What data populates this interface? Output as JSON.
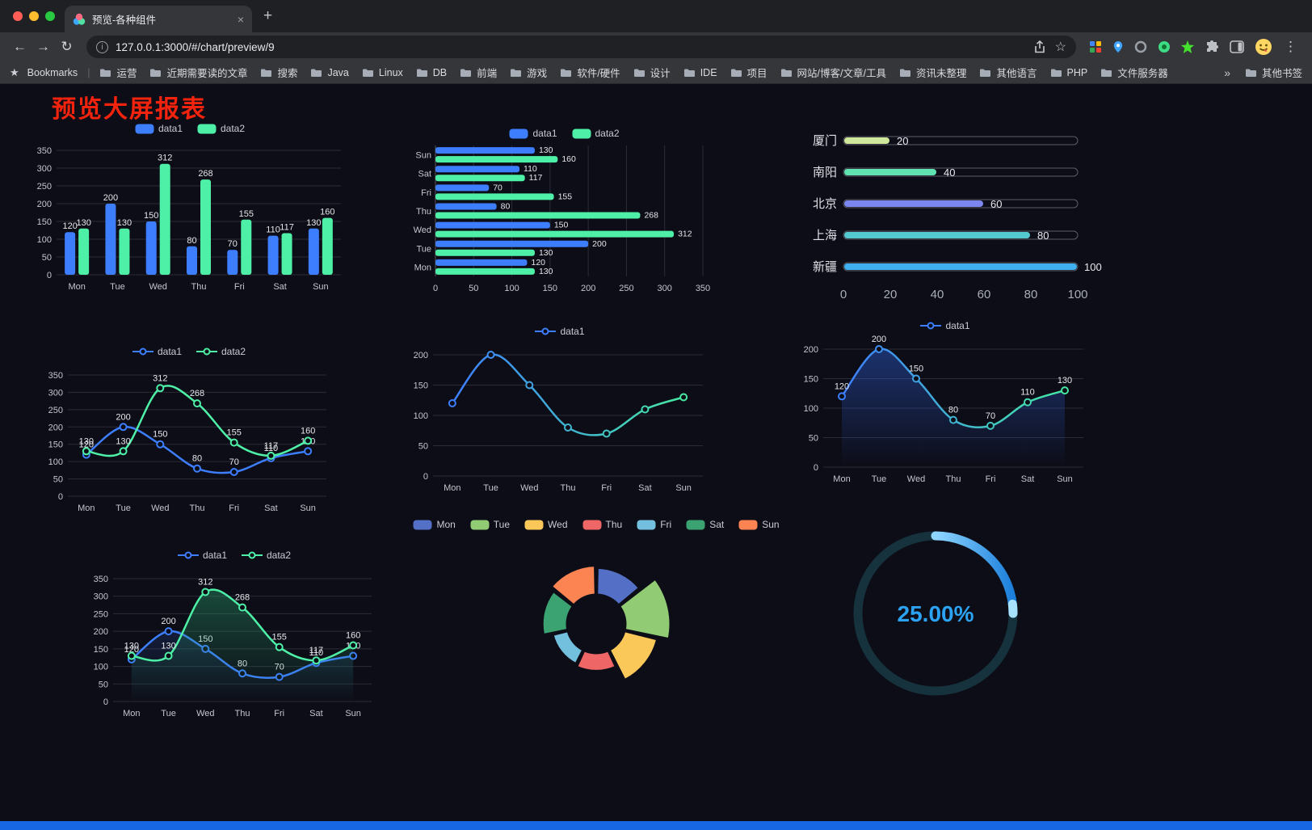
{
  "browser": {
    "tab_title": "预览-各种组件",
    "url": "127.0.0.1:3000/#/chart/preview/9",
    "icons": {
      "back": "←",
      "forward": "→",
      "reload": "↻",
      "info": "i",
      "star": "☆",
      "close": "×",
      "new_tab": "+",
      "menu": "⋮",
      "overflow": "»",
      "separator": "|",
      "bookmarks_star": "★"
    },
    "bookmarks": {
      "label": "Bookmarks",
      "items": [
        "运营",
        "近期需要读的文章",
        "搜索",
        "Java",
        "Linux",
        "DB",
        "前端",
        "游戏",
        "软件/硬件",
        "设计",
        "IDE",
        "项目",
        "网站/博客/文章/工具",
        "资讯未整理",
        "其他语言",
        "PHP",
        "文件服务器"
      ],
      "other_label": "其他书签"
    }
  },
  "page": {
    "title": "预览大屏报表",
    "title_color": "#f4230d",
    "background": "#0d0d17"
  },
  "chart_data": [
    {
      "id": "bar1",
      "type": "bar",
      "legend_position": "top",
      "categories": [
        "Mon",
        "Tue",
        "Wed",
        "Thu",
        "Fri",
        "Sat",
        "Sun"
      ],
      "series": [
        {
          "name": "data1",
          "color": "#3D7EFF",
          "values": [
            120,
            200,
            150,
            80,
            70,
            110,
            130
          ]
        },
        {
          "name": "data2",
          "color": "#4DF0A6",
          "values": [
            130,
            130,
            312,
            268,
            155,
            117,
            160
          ]
        }
      ],
      "ylim": [
        0,
        350
      ],
      "yticks": [
        0,
        50,
        100,
        150,
        200,
        250,
        300,
        350
      ],
      "grid": true
    },
    {
      "id": "hbar1",
      "type": "hbar",
      "legend_position": "top",
      "categories": [
        "Sun",
        "Sat",
        "Fri",
        "Thu",
        "Wed",
        "Tue",
        "Mon"
      ],
      "series": [
        {
          "name": "data1",
          "color": "#3D7EFF",
          "values": [
            130,
            110,
            70,
            80,
            150,
            200,
            120
          ]
        },
        {
          "name": "data2",
          "color": "#4DF0A6",
          "values": [
            160,
            117,
            155,
            268,
            312,
            130,
            130
          ]
        }
      ],
      "xlim": [
        0,
        350
      ],
      "xticks": [
        0,
        50,
        100,
        150,
        200,
        250,
        300,
        350
      ],
      "grid": true
    },
    {
      "id": "progress1",
      "type": "progress",
      "categories": [
        "厦门",
        "南阳",
        "北京",
        "上海",
        "新疆"
      ],
      "values": [
        20,
        40,
        60,
        80,
        100
      ],
      "colors": [
        "#cfe79a",
        "#5fe3b1",
        "#7b87ee",
        "#54c8cf",
        "#3fb1f0"
      ],
      "xlim": [
        0,
        100
      ],
      "xticks": [
        0,
        20,
        40,
        60,
        80,
        100
      ]
    },
    {
      "id": "line1",
      "type": "line",
      "show_labels": true,
      "legend_position": "top",
      "categories": [
        "Mon",
        "Tue",
        "Wed",
        "Thu",
        "Fri",
        "Sat",
        "Sun"
      ],
      "series": [
        {
          "name": "data1",
          "color": "#3D7EFF",
          "values": [
            120,
            200,
            150,
            80,
            70,
            110,
            130
          ]
        },
        {
          "name": "data2",
          "color": "#4DF0A6",
          "values": [
            130,
            130,
            312,
            268,
            155,
            117,
            160
          ]
        }
      ],
      "ylim": [
        0,
        350
      ],
      "yticks": [
        0,
        50,
        100,
        150,
        200,
        250,
        300,
        350
      ],
      "grid": true
    },
    {
      "id": "line2",
      "type": "line",
      "show_labels": false,
      "legend_position": "top",
      "categories": [
        "Mon",
        "Tue",
        "Wed",
        "Thu",
        "Fri",
        "Sat",
        "Sun"
      ],
      "series": [
        {
          "name": "data1",
          "color": "#3D7EFF",
          "gradient": [
            "#3D7EFF",
            "#45E9A2"
          ],
          "values": [
            120,
            200,
            150,
            80,
            70,
            110,
            130
          ]
        }
      ],
      "ylim": [
        0,
        200
      ],
      "yticks": [
        0,
        50,
        100,
        150,
        200
      ],
      "grid": true
    },
    {
      "id": "line3",
      "type": "line",
      "show_labels": true,
      "legend_position": "top",
      "categories": [
        "Mon",
        "Tue",
        "Wed",
        "Thu",
        "Fri",
        "Sat",
        "Sun"
      ],
      "series": [
        {
          "name": "data1",
          "color": "#3D7EFF",
          "gradient": [
            "#3D7EFF",
            "#45E9A2"
          ],
          "area": 0.45,
          "area_color": "#2E5FD8",
          "values": [
            120,
            200,
            150,
            80,
            70,
            110,
            130
          ]
        }
      ],
      "ylim": [
        0,
        200
      ],
      "yticks": [
        0,
        50,
        100,
        150,
        200
      ],
      "grid": true
    },
    {
      "id": "line4",
      "type": "line",
      "show_labels": true,
      "legend_position": "top",
      "categories": [
        "Mon",
        "Tue",
        "Wed",
        "Thu",
        "Fri",
        "Sat",
        "Sun"
      ],
      "series": [
        {
          "name": "data1",
          "color": "#3D7EFF",
          "area": 0.15,
          "values": [
            120,
            200,
            150,
            80,
            70,
            110,
            130
          ]
        },
        {
          "name": "data2",
          "color": "#4DF0A6",
          "area": 0.4,
          "area_color": "#2AA56F",
          "values": [
            130,
            130,
            312,
            268,
            155,
            117,
            160
          ]
        }
      ],
      "ylim": [
        0,
        350
      ],
      "yticks": [
        0,
        50,
        100,
        150,
        200,
        250,
        300,
        350
      ],
      "grid": true
    },
    {
      "id": "pie1",
      "type": "pie",
      "rose": true,
      "legend_position": "top",
      "categories": [
        "Mon",
        "Tue",
        "Wed",
        "Thu",
        "Fri",
        "Sat",
        "Sun"
      ],
      "values": [
        120,
        200,
        150,
        80,
        70,
        110,
        130
      ],
      "colors": [
        "#5470C6",
        "#91CC75",
        "#FAC858",
        "#EE6666",
        "#73C0DE",
        "#3BA272",
        "#FC8452"
      ]
    },
    {
      "id": "gauge1",
      "type": "gauge",
      "value": 25,
      "label": "25.00%",
      "color": "#2BA3F2",
      "track_color": "#16323D"
    }
  ]
}
